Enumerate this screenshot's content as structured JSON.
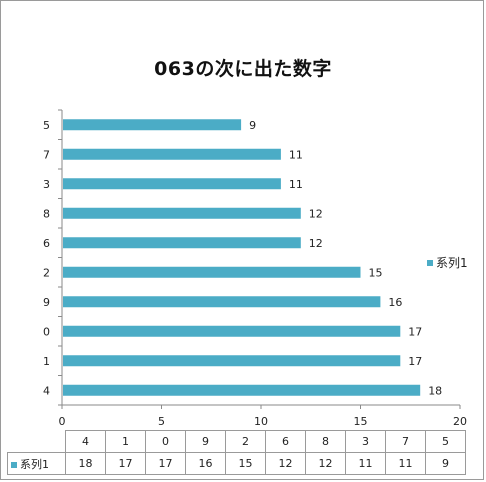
{
  "chart_data": {
    "type": "bar",
    "orientation": "horizontal",
    "title": "063の次に出た数字",
    "categories": [
      "5",
      "7",
      "3",
      "8",
      "6",
      "2",
      "9",
      "0",
      "1",
      "4"
    ],
    "series": [
      {
        "name": "系列1",
        "values": [
          9,
          11,
          11,
          12,
          12,
          15,
          16,
          17,
          17,
          18
        ],
        "color": "#4bacc6"
      }
    ],
    "xlim": [
      0,
      20
    ],
    "xticks": [
      0,
      5,
      10,
      15,
      20
    ],
    "grid": false,
    "legend_position": "right",
    "data_labels": true,
    "data_table": {
      "categories": [
        "4",
        "1",
        "0",
        "9",
        "2",
        "6",
        "8",
        "3",
        "7",
        "5"
      ],
      "values": [
        18,
        17,
        17,
        16,
        15,
        12,
        12,
        11,
        11,
        9
      ]
    }
  }
}
